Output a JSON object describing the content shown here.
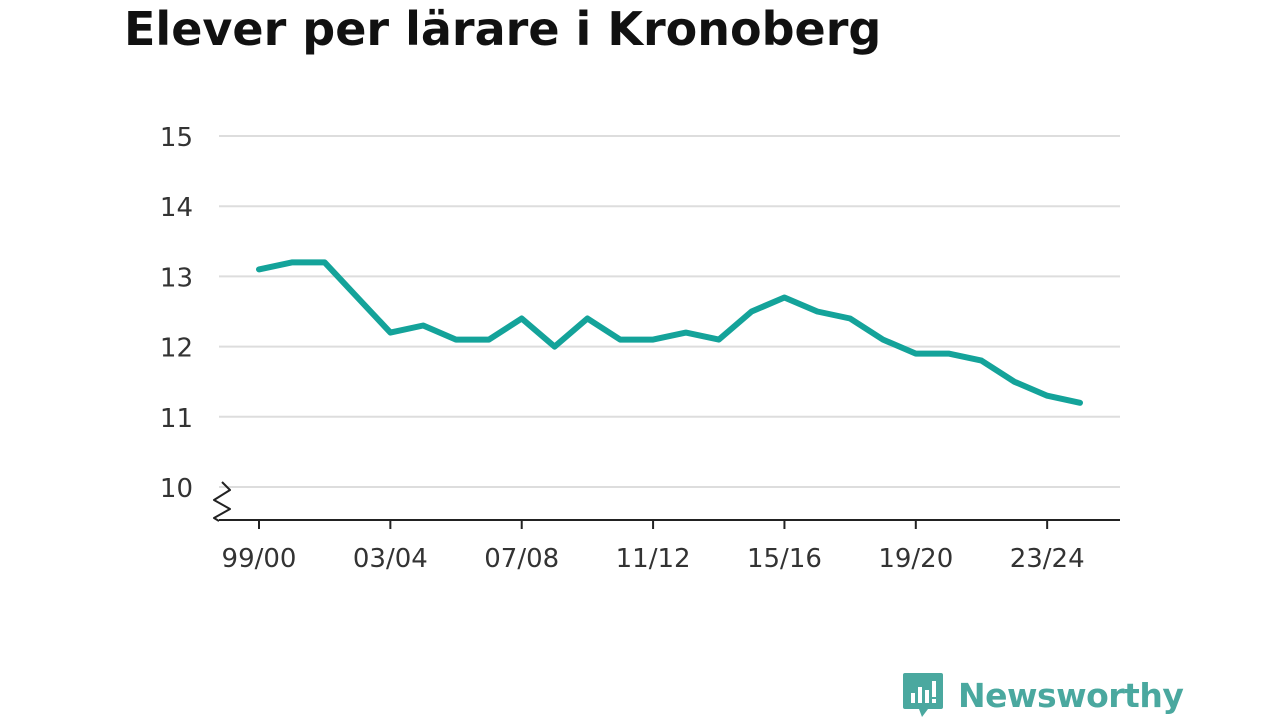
{
  "title": "Elever per lärare i Kronoberg",
  "brand": {
    "name": "Newsworthy",
    "color": "#4aa89f",
    "icon": "newsworthy-logo-icon"
  },
  "colors": {
    "line": "#14a39a",
    "grid": "#dddddd",
    "axis": "#222222",
    "text": "#333333"
  },
  "chart_data": {
    "type": "line",
    "title": "Elever per lärare i Kronoberg",
    "xlabel": "",
    "ylabel": "",
    "ylim": [
      10,
      15
    ],
    "y_axis_break": true,
    "grid": true,
    "yticks": [
      10,
      11,
      12,
      13,
      14,
      15
    ],
    "xticks": [
      "99/00",
      "03/04",
      "07/08",
      "11/12",
      "15/16",
      "19/20",
      "23/24"
    ],
    "x": [
      "99/00",
      "00/01",
      "01/02",
      "02/03",
      "03/04",
      "04/05",
      "05/06",
      "06/07",
      "07/08",
      "08/09",
      "09/10",
      "10/11",
      "11/12",
      "12/13",
      "13/14",
      "14/15",
      "15/16",
      "16/17",
      "17/18",
      "18/19",
      "19/20",
      "20/21",
      "21/22",
      "22/23",
      "23/24",
      "24/25"
    ],
    "series": [
      {
        "values": [
          13.1,
          13.2,
          13.2,
          12.7,
          12.2,
          12.3,
          12.1,
          12.1,
          12.4,
          12.0,
          12.4,
          12.1,
          12.1,
          12.2,
          12.1,
          12.5,
          12.7,
          12.5,
          12.4,
          12.1,
          11.9,
          11.9,
          11.8,
          11.5,
          11.3,
          11.2
        ]
      }
    ]
  }
}
